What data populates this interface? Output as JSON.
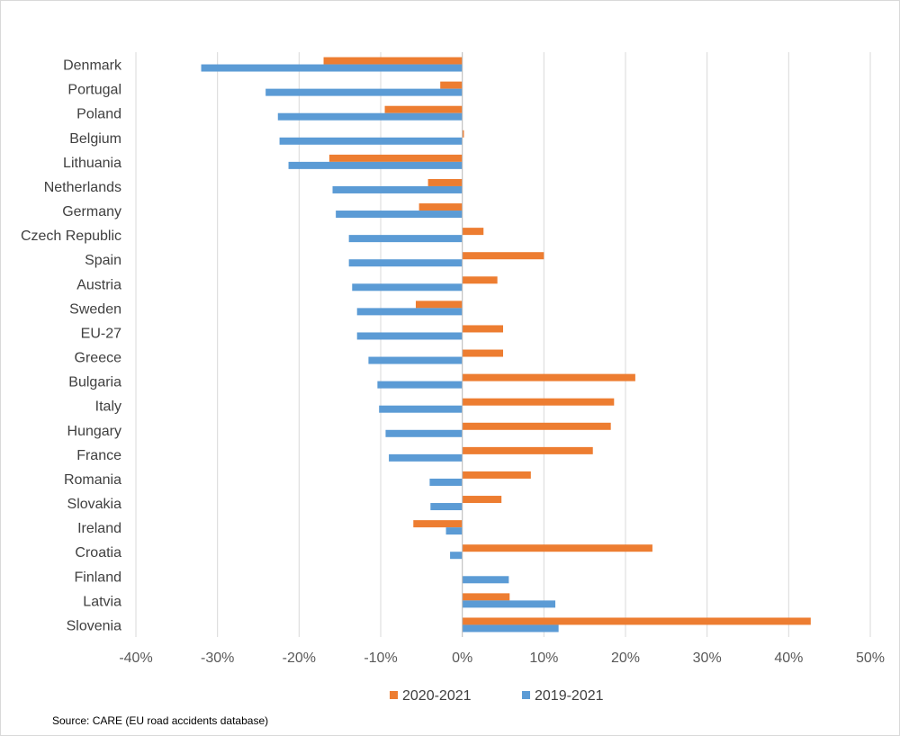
{
  "chart_data": {
    "type": "bar",
    "orientation": "horizontal",
    "categories": [
      "Denmark",
      "Portugal",
      "Poland",
      "Belgium",
      "Lithuania",
      "Netherlands",
      "Germany",
      "Czech Republic",
      "Spain",
      "Austria",
      "Sweden",
      "EU-27",
      "Greece",
      "Bulgaria",
      "Italy",
      "Hungary",
      "France",
      "Romania",
      "Slovakia",
      "Ireland",
      "Croatia",
      "Finland",
      "Latvia",
      "Slovenia"
    ],
    "series": [
      {
        "name": "2020-2021",
        "color": "#ED7D31",
        "values": [
          -17,
          -2.7,
          -9.5,
          0.2,
          -16.3,
          -4.2,
          -5.3,
          2.6,
          10,
          4.3,
          -5.7,
          5,
          5,
          21.2,
          18.6,
          18.2,
          16,
          8.4,
          4.8,
          -6,
          23.3,
          0,
          5.8,
          42.7
        ]
      },
      {
        "name": "2019-2021",
        "color": "#5B9BD5",
        "values": [
          -32,
          -24.1,
          -22.6,
          -22.4,
          -21.3,
          -15.9,
          -15.5,
          -13.9,
          -13.9,
          -13.5,
          -12.9,
          -12.9,
          -11.5,
          -10.4,
          -10.2,
          -9.4,
          -9,
          -4,
          -3.9,
          -2,
          -1.5,
          5.7,
          11.4,
          11.8
        ]
      }
    ],
    "xlim": [
      -40,
      50
    ],
    "xticks": [
      -40,
      -30,
      -20,
      -10,
      0,
      10,
      20,
      30,
      40,
      50
    ],
    "tick_format": "percent",
    "grid": true,
    "legend": "bottom",
    "title": "",
    "xlabel": "",
    "ylabel": ""
  },
  "legend_labels": [
    "2020-2021",
    "2019-2021"
  ],
  "source_note": "Source: CARE (EU road accidents database)"
}
